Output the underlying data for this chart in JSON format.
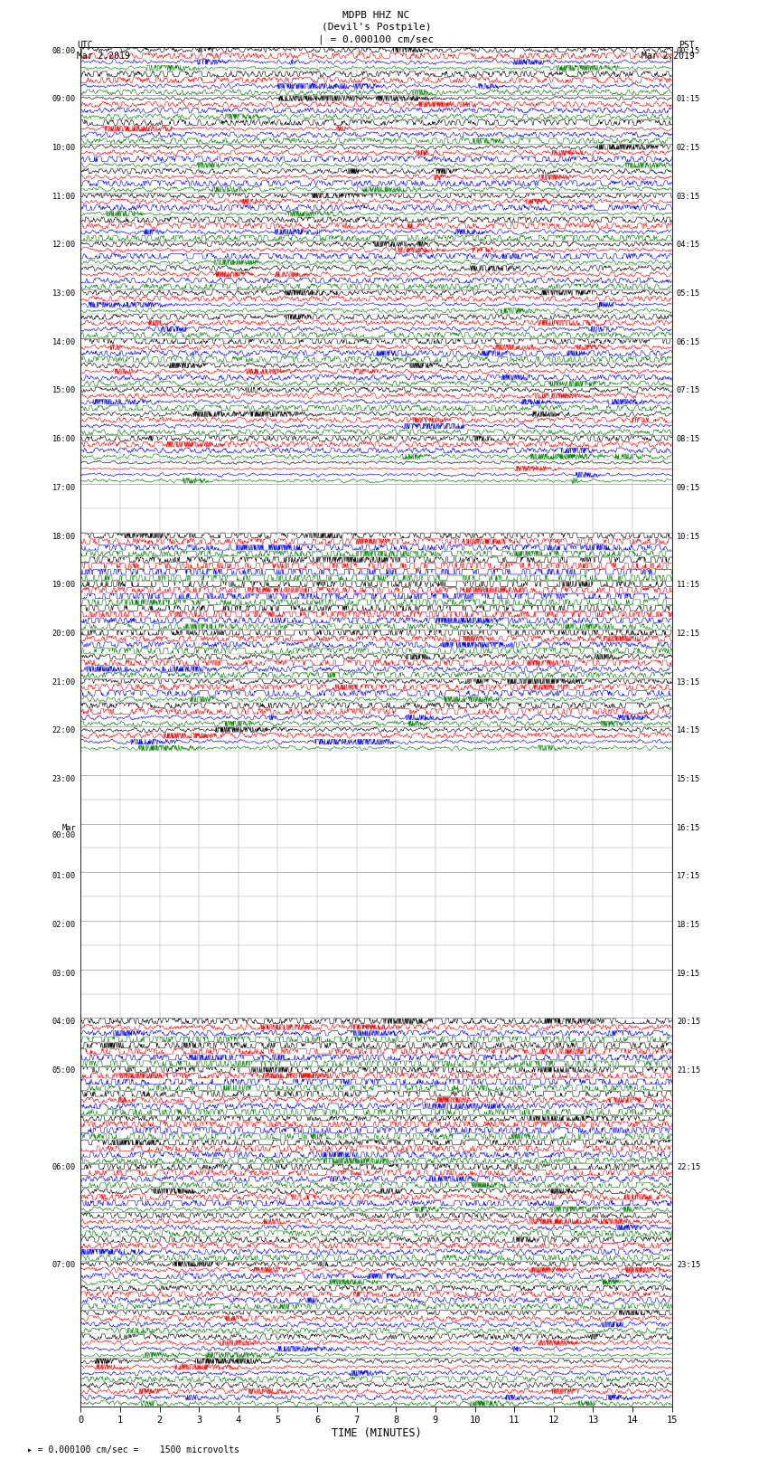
{
  "title_line1": "MDPB HHZ NC",
  "title_line2": "(Devil's Postpile)",
  "scale_label": "| = 0.000100 cm/sec",
  "footer_label": "= 0.000100 cm/sec =    1500 microvolts",
  "utc_label": "UTC\nMar 2,2019",
  "pst_label": "PST\nMar 2,2019",
  "xlabel": "TIME (MINUTES)",
  "bg_color": "white",
  "grid_color": "#999999",
  "trace_colors": [
    "black",
    "red",
    "blue",
    "green"
  ],
  "num_rows": 56,
  "minutes_per_row": 15,
  "xlim": [
    0,
    15
  ],
  "seed": 12345,
  "left_labels": [
    "08:00",
    null,
    "09:00",
    null,
    "10:00",
    null,
    "11:00",
    null,
    "12:00",
    null,
    "13:00",
    null,
    "14:00",
    null,
    "15:00",
    null,
    "16:00",
    null,
    "17:00",
    null,
    "18:00",
    null,
    "19:00",
    null,
    "20:00",
    null,
    "21:00",
    null,
    "22:00",
    null,
    "23:00",
    null,
    "Mar\n00:00",
    null,
    "01:00",
    null,
    "02:00",
    null,
    "03:00",
    null,
    "04:00",
    null,
    "05:00",
    null,
    null,
    null,
    "06:00",
    null,
    null,
    null,
    "07:00",
    null,
    null,
    null,
    null
  ],
  "right_labels": [
    "00:15",
    null,
    "01:15",
    null,
    "02:15",
    null,
    "03:15",
    null,
    "04:15",
    null,
    "05:15",
    null,
    "06:15",
    null,
    "07:15",
    null,
    "08:15",
    null,
    "09:15",
    null,
    "10:15",
    null,
    "11:15",
    null,
    "12:15",
    null,
    "13:15",
    null,
    "14:15",
    null,
    "15:15",
    null,
    "16:15",
    null,
    "17:15",
    null,
    "18:15",
    null,
    "19:15",
    null,
    "20:15",
    null,
    "21:15",
    null,
    null,
    null,
    "22:15",
    null,
    null,
    null,
    "23:15",
    null,
    null,
    null,
    null
  ],
  "amp_profile": [
    1.0,
    1.0,
    1.0,
    1.0,
    1.1,
    1.0,
    1.0,
    1.0,
    1.0,
    1.2,
    1.1,
    1.0,
    1.5,
    1.3,
    1.0,
    1.0,
    1.2,
    0.4,
    0.3,
    0.3,
    4.5,
    5.0,
    4.0,
    3.5,
    2.5,
    2.0,
    1.8,
    1.5,
    1.2,
    0.3,
    0.3,
    0.3,
    0.3,
    0.3,
    0.3,
    0.3,
    0.3,
    0.3,
    0.3,
    0.3,
    2.5,
    3.0,
    3.5,
    2.8,
    2.5,
    2.2,
    2.0,
    1.8,
    1.5,
    1.4,
    1.3,
    1.2,
    1.1,
    1.0,
    1.0,
    1.0
  ]
}
